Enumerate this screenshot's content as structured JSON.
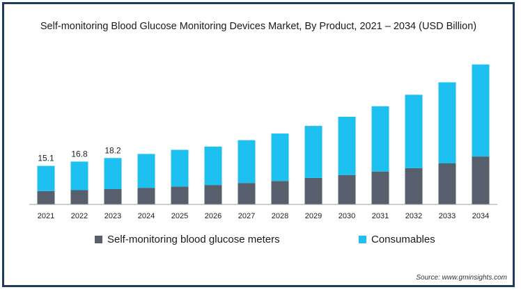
{
  "chart_data": {
    "type": "bar",
    "stacked": true,
    "title": "Self-monitoring Blood Glucose Monitoring Devices Market, By Product, 2021 – 2034 (USD Billion)",
    "xlabel": "",
    "ylabel": "",
    "categories": [
      "2021",
      "2022",
      "2023",
      "2024",
      "2025",
      "2026",
      "2027",
      "2028",
      "2029",
      "2030",
      "2031",
      "2032",
      "2033",
      "2034"
    ],
    "series": [
      {
        "name": "Self-monitoring blood glucose meters",
        "color": "#565f6b",
        "values": [
          5.2,
          5.6,
          6.0,
          6.5,
          7.0,
          7.6,
          8.4,
          9.2,
          10.4,
          11.5,
          12.9,
          14.2,
          16.1,
          18.8
        ]
      },
      {
        "name": "Consumables",
        "color": "#1ec0ef",
        "values": [
          9.9,
          11.2,
          12.2,
          13.3,
          14.4,
          15.1,
          16.8,
          18.6,
          20.4,
          22.9,
          25.6,
          28.8,
          31.8,
          36.1
        ]
      }
    ],
    "data_labels": [
      "15.1",
      "16.8",
      "18.2"
    ],
    "ylim": [
      0,
      60
    ],
    "grid": false,
    "legend_position": "bottom",
    "source": "Source: www.gminsights.com"
  }
}
